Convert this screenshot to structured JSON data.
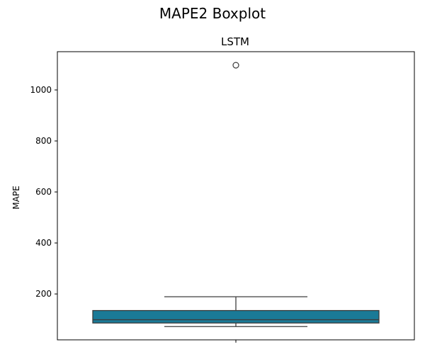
{
  "chart_data": {
    "type": "boxplot",
    "suptitle": "MAPE2 Boxplot",
    "title": "LSTM",
    "xlabel": "",
    "ylabel": "MAPE",
    "ylim": [
      20,
      1150
    ],
    "yticks": [
      200,
      400,
      600,
      800,
      1000
    ],
    "box": {
      "whisker_low": 72,
      "q1": 86,
      "median": 99,
      "q3": 135,
      "whisker_high": 189,
      "outliers": [
        1097
      ]
    },
    "colors": {
      "box_fill": "#1a7a97",
      "line": "#3d3d3d"
    }
  }
}
